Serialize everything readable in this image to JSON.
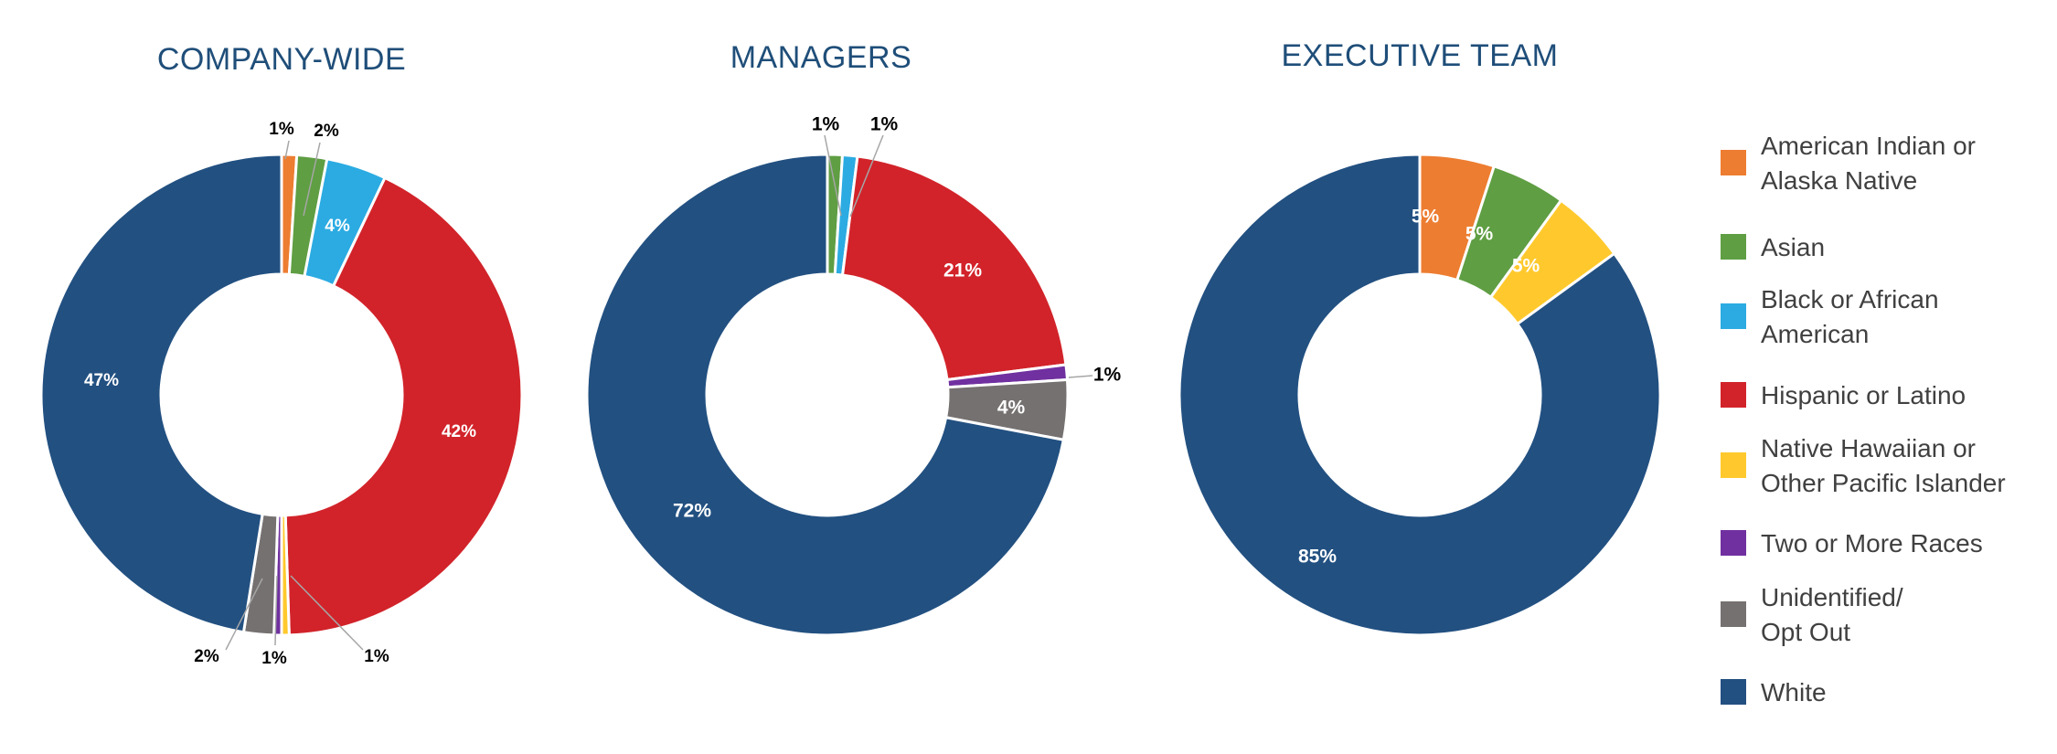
{
  "colors": {
    "American Indian or Alaska Native": "#ED7D31",
    "Asian": "#5F9E43",
    "Black or African American": "#2BABE2",
    "Hispanic or Latino": "#D2232A",
    "Native Hawaiian or Other Pacific Islander": "#FFC92D",
    "Two or More Races": "#7030A0",
    "Unidentified/ Opt Out": "#767171",
    "White": "#225081"
  },
  "legend": {
    "items": [
      {
        "key": "American Indian or Alaska Native",
        "lines": [
          "American Indian or",
          "Alaska Native"
        ]
      },
      {
        "key": "Asian",
        "lines": [
          "Asian"
        ]
      },
      {
        "key": "Black or African American",
        "lines": [
          "Black or African",
          "American"
        ]
      },
      {
        "key": "Hispanic or Latino",
        "lines": [
          "Hispanic or Latino"
        ]
      },
      {
        "key": "Native Hawaiian or Other Pacific Islander",
        "lines": [
          "Native Hawaiian or",
          "Other Pacific Islander"
        ]
      },
      {
        "key": "Two or More Races",
        "lines": [
          "Two or More Races"
        ]
      },
      {
        "key": "Unidentified/ Opt Out",
        "lines": [
          "Unidentified/",
          "Opt Out"
        ]
      },
      {
        "key": "White",
        "lines": [
          "White"
        ]
      }
    ]
  },
  "chart_data": [
    {
      "type": "pie",
      "title": "COMPANY-WIDE",
      "legend_position": "right",
      "slices": [
        {
          "category": "American Indian or Alaska Native",
          "value": 1,
          "label": "1%"
        },
        {
          "category": "Asian",
          "value": 2,
          "label": "2%"
        },
        {
          "category": "Black or African American",
          "value": 4,
          "label": "4%"
        },
        {
          "category": "Hispanic or Latino",
          "value": 42,
          "label": "42%"
        },
        {
          "category": "Native Hawaiian or Other Pacific Islander",
          "value": 0.5,
          "label": "1%"
        },
        {
          "category": "Two or More Races",
          "value": 0.5,
          "label": "1%"
        },
        {
          "category": "Unidentified/ Opt Out",
          "value": 2,
          "label": "2%"
        },
        {
          "category": "White",
          "value": 47,
          "label": "47%"
        }
      ]
    },
    {
      "type": "pie",
      "title": "MANAGERS",
      "slices": [
        {
          "category": "Asian",
          "value": 1,
          "label": "1%"
        },
        {
          "category": "Black or African American",
          "value": 1,
          "label": "1%"
        },
        {
          "category": "Hispanic or Latino",
          "value": 21,
          "label": "21%"
        },
        {
          "category": "Two or More Races",
          "value": 1,
          "label": "1%"
        },
        {
          "category": "Unidentified/ Opt Out",
          "value": 4,
          "label": "4%"
        },
        {
          "category": "White",
          "value": 72,
          "label": "72%"
        }
      ]
    },
    {
      "type": "pie",
      "title": "EXECUTIVE TEAM",
      "slices": [
        {
          "category": "American Indian or Alaska Native",
          "value": 5,
          "label": "5%"
        },
        {
          "category": "Asian",
          "value": 5,
          "label": "5%"
        },
        {
          "category": "Native Hawaiian or Other Pacific Islander",
          "value": 5,
          "label": "5%"
        },
        {
          "category": "White",
          "value": 85,
          "label": "85%"
        }
      ]
    }
  ]
}
